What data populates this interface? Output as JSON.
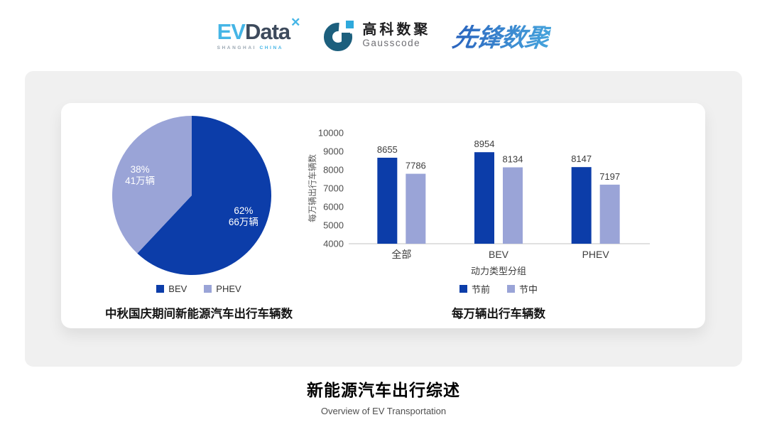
{
  "header": {
    "evdata": {
      "ev": "EV",
      "data": "Data",
      "mark": "✕",
      "sub1": "SHANGHAI",
      "sub2": "CHINA"
    },
    "gausscode": {
      "cn": "高科数聚",
      "en": "Gausscode"
    },
    "xianfeng": {
      "text": "先锋数聚"
    }
  },
  "footer": {
    "title": "新能源汽车出行综述",
    "subtitle": "Overview of EV Transportation"
  },
  "colors": {
    "primary_blue": "#0c3da9",
    "secondary_blue": "#9aa4d7",
    "axis_line": "#d5d5d5",
    "label_text": "#3c3c3c",
    "tick_text": "#4d4d4d"
  },
  "chart_data": [
    {
      "type": "pie",
      "title": "中秋国庆期间新能源汽车出行车辆数",
      "legend_position": "bottom",
      "slices": [
        {
          "label": "BEV",
          "percent": 62,
          "percent_label": "62%",
          "value_label": "66万辆",
          "value_wan": 66,
          "color": "#0c3da9",
          "text_color": "#ffffff"
        },
        {
          "label": "PHEV",
          "percent": 38,
          "percent_label": "38%",
          "value_label": "41万辆",
          "value_wan": 41,
          "color": "#9aa4d7",
          "text_color": "#ffffff"
        }
      ]
    },
    {
      "type": "bar",
      "title": "每万辆出行车辆数",
      "categories": [
        "全部",
        "BEV",
        "PHEV"
      ],
      "series": [
        {
          "name": "节前",
          "values": [
            8655,
            8954,
            8147
          ],
          "color": "#0c3da9"
        },
        {
          "name": "节中",
          "values": [
            7786,
            8134,
            7197
          ],
          "color": "#9aa4d7"
        }
      ],
      "xlabel": "动力类型分组",
      "ylabel": "每万辆出行车辆数",
      "ylim": [
        4000,
        10000
      ],
      "ytick_step": 1000,
      "grid": false,
      "legend_position": "bottom"
    }
  ]
}
